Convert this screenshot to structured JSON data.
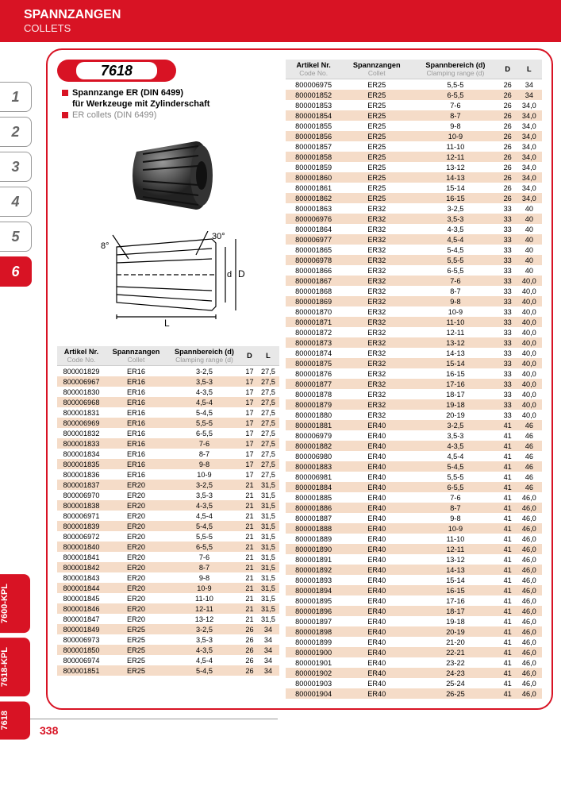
{
  "header": {
    "title_de": "SPANNZANGEN",
    "title_en": "COLLETS"
  },
  "nav": {
    "tabs": [
      "1",
      "2",
      "3",
      "4",
      "5",
      "6"
    ],
    "active": 5,
    "vert": [
      "7600-KPL",
      "7618-KPL",
      "7618"
    ]
  },
  "product": {
    "code": "7618",
    "desc_de_1": "Spannzange ER (DIN 6499)",
    "desc_de_2": "für Werkzeuge mit Zylinderschaft",
    "desc_en": "ER collets (DIN 6499)"
  },
  "cols": {
    "art": "Artikel Nr.",
    "art_en": "Code No.",
    "coll": "Spannzangen",
    "coll_en": "Collet",
    "rng": "Spannbereich (d)",
    "rng_en": "Clamping range (d)",
    "d": "D",
    "l": "L"
  },
  "table1": [
    [
      "800001829",
      "ER16",
      "3-2,5",
      "17",
      "27,5"
    ],
    [
      "800006967",
      "ER16",
      "3,5-3",
      "17",
      "27,5"
    ],
    [
      "800001830",
      "ER16",
      "4-3,5",
      "17",
      "27,5"
    ],
    [
      "800006968",
      "ER16",
      "4,5-4",
      "17",
      "27,5"
    ],
    [
      "800001831",
      "ER16",
      "5-4,5",
      "17",
      "27,5"
    ],
    [
      "800006969",
      "ER16",
      "5,5-5",
      "17",
      "27,5"
    ],
    [
      "800001832",
      "ER16",
      "6-5,5",
      "17",
      "27,5"
    ],
    [
      "800001833",
      "ER16",
      "7-6",
      "17",
      "27,5"
    ],
    [
      "800001834",
      "ER16",
      "8-7",
      "17",
      "27,5"
    ],
    [
      "800001835",
      "ER16",
      "9-8",
      "17",
      "27,5"
    ],
    [
      "800001836",
      "ER16",
      "10-9",
      "17",
      "27,5"
    ],
    [
      "800001837",
      "ER20",
      "3-2,5",
      "21",
      "31,5"
    ],
    [
      "800006970",
      "ER20",
      "3,5-3",
      "21",
      "31,5"
    ],
    [
      "800001838",
      "ER20",
      "4-3,5",
      "21",
      "31,5"
    ],
    [
      "800006971",
      "ER20",
      "4,5-4",
      "21",
      "31,5"
    ],
    [
      "800001839",
      "ER20",
      "5-4,5",
      "21",
      "31,5"
    ],
    [
      "800006972",
      "ER20",
      "5,5-5",
      "21",
      "31,5"
    ],
    [
      "800001840",
      "ER20",
      "6-5,5",
      "21",
      "31,5"
    ],
    [
      "800001841",
      "ER20",
      "7-6",
      "21",
      "31,5"
    ],
    [
      "800001842",
      "ER20",
      "8-7",
      "21",
      "31,5"
    ],
    [
      "800001843",
      "ER20",
      "9-8",
      "21",
      "31,5"
    ],
    [
      "800001844",
      "ER20",
      "10-9",
      "21",
      "31,5"
    ],
    [
      "800001845",
      "ER20",
      "11-10",
      "21",
      "31,5"
    ],
    [
      "800001846",
      "ER20",
      "12-11",
      "21",
      "31,5"
    ],
    [
      "800001847",
      "ER20",
      "13-12",
      "21",
      "31,5"
    ],
    [
      "800001849",
      "ER25",
      "3-2,5",
      "26",
      "34"
    ],
    [
      "800006973",
      "ER25",
      "3,5-3",
      "26",
      "34"
    ],
    [
      "800001850",
      "ER25",
      "4-3,5",
      "26",
      "34"
    ],
    [
      "800006974",
      "ER25",
      "4,5-4",
      "26",
      "34"
    ],
    [
      "800001851",
      "ER25",
      "5-4,5",
      "26",
      "34"
    ]
  ],
  "table2": [
    [
      "800006975",
      "ER25",
      "5,5-5",
      "26",
      "34"
    ],
    [
      "800001852",
      "ER25",
      "6-5,5",
      "26",
      "34"
    ],
    [
      "800001853",
      "ER25",
      "7-6",
      "26",
      "34,0"
    ],
    [
      "800001854",
      "ER25",
      "8-7",
      "26",
      "34,0"
    ],
    [
      "800001855",
      "ER25",
      "9-8",
      "26",
      "34,0"
    ],
    [
      "800001856",
      "ER25",
      "10-9",
      "26",
      "34,0"
    ],
    [
      "800001857",
      "ER25",
      "11-10",
      "26",
      "34,0"
    ],
    [
      "800001858",
      "ER25",
      "12-11",
      "26",
      "34,0"
    ],
    [
      "800001859",
      "ER25",
      "13-12",
      "26",
      "34,0"
    ],
    [
      "800001860",
      "ER25",
      "14-13",
      "26",
      "34,0"
    ],
    [
      "800001861",
      "ER25",
      "15-14",
      "26",
      "34,0"
    ],
    [
      "800001862",
      "ER25",
      "16-15",
      "26",
      "34,0"
    ],
    [
      "800001863",
      "ER32",
      "3-2,5",
      "33",
      "40"
    ],
    [
      "800006976",
      "ER32",
      "3,5-3",
      "33",
      "40"
    ],
    [
      "800001864",
      "ER32",
      "4-3,5",
      "33",
      "40"
    ],
    [
      "800006977",
      "ER32",
      "4,5-4",
      "33",
      "40"
    ],
    [
      "800001865",
      "ER32",
      "5-4,5",
      "33",
      "40"
    ],
    [
      "800006978",
      "ER32",
      "5,5-5",
      "33",
      "40"
    ],
    [
      "800001866",
      "ER32",
      "6-5,5",
      "33",
      "40"
    ],
    [
      "800001867",
      "ER32",
      "7-6",
      "33",
      "40,0"
    ],
    [
      "800001868",
      "ER32",
      "8-7",
      "33",
      "40,0"
    ],
    [
      "800001869",
      "ER32",
      "9-8",
      "33",
      "40,0"
    ],
    [
      "800001870",
      "ER32",
      "10-9",
      "33",
      "40,0"
    ],
    [
      "800001871",
      "ER32",
      "11-10",
      "33",
      "40,0"
    ],
    [
      "800001872",
      "ER32",
      "12-11",
      "33",
      "40,0"
    ],
    [
      "800001873",
      "ER32",
      "13-12",
      "33",
      "40,0"
    ],
    [
      "800001874",
      "ER32",
      "14-13",
      "33",
      "40,0"
    ],
    [
      "800001875",
      "ER32",
      "15-14",
      "33",
      "40,0"
    ],
    [
      "800001876",
      "ER32",
      "16-15",
      "33",
      "40,0"
    ],
    [
      "800001877",
      "ER32",
      "17-16",
      "33",
      "40,0"
    ],
    [
      "800001878",
      "ER32",
      "18-17",
      "33",
      "40,0"
    ],
    [
      "800001879",
      "ER32",
      "19-18",
      "33",
      "40,0"
    ],
    [
      "800001880",
      "ER32",
      "20-19",
      "33",
      "40,0"
    ],
    [
      "800001881",
      "ER40",
      "3-2,5",
      "41",
      "46"
    ],
    [
      "800006979",
      "ER40",
      "3,5-3",
      "41",
      "46"
    ],
    [
      "800001882",
      "ER40",
      "4-3,5",
      "41",
      "46"
    ],
    [
      "800006980",
      "ER40",
      "4,5-4",
      "41",
      "46"
    ],
    [
      "800001883",
      "ER40",
      "5-4,5",
      "41",
      "46"
    ],
    [
      "800006981",
      "ER40",
      "5,5-5",
      "41",
      "46"
    ],
    [
      "800001884",
      "ER40",
      "6-5,5",
      "41",
      "46"
    ],
    [
      "800001885",
      "ER40",
      "7-6",
      "41",
      "46,0"
    ],
    [
      "800001886",
      "ER40",
      "8-7",
      "41",
      "46,0"
    ],
    [
      "800001887",
      "ER40",
      "9-8",
      "41",
      "46,0"
    ],
    [
      "800001888",
      "ER40",
      "10-9",
      "41",
      "46,0"
    ],
    [
      "800001889",
      "ER40",
      "11-10",
      "41",
      "46,0"
    ],
    [
      "800001890",
      "ER40",
      "12-11",
      "41",
      "46,0"
    ],
    [
      "800001891",
      "ER40",
      "13-12",
      "41",
      "46,0"
    ],
    [
      "800001892",
      "ER40",
      "14-13",
      "41",
      "46,0"
    ],
    [
      "800001893",
      "ER40",
      "15-14",
      "41",
      "46,0"
    ],
    [
      "800001894",
      "ER40",
      "16-15",
      "41",
      "46,0"
    ],
    [
      "800001895",
      "ER40",
      "17-16",
      "41",
      "46,0"
    ],
    [
      "800001896",
      "ER40",
      "18-17",
      "41",
      "46,0"
    ],
    [
      "800001897",
      "ER40",
      "19-18",
      "41",
      "46,0"
    ],
    [
      "800001898",
      "ER40",
      "20-19",
      "41",
      "46,0"
    ],
    [
      "800001899",
      "ER40",
      "21-20",
      "41",
      "46,0"
    ],
    [
      "800001900",
      "ER40",
      "22-21",
      "41",
      "46,0"
    ],
    [
      "800001901",
      "ER40",
      "23-22",
      "41",
      "46,0"
    ],
    [
      "800001902",
      "ER40",
      "24-23",
      "41",
      "46,0"
    ],
    [
      "800001903",
      "ER40",
      "25-24",
      "41",
      "46,0"
    ],
    [
      "800001904",
      "ER40",
      "26-25",
      "41",
      "46,0"
    ]
  ],
  "pagenum": "338"
}
